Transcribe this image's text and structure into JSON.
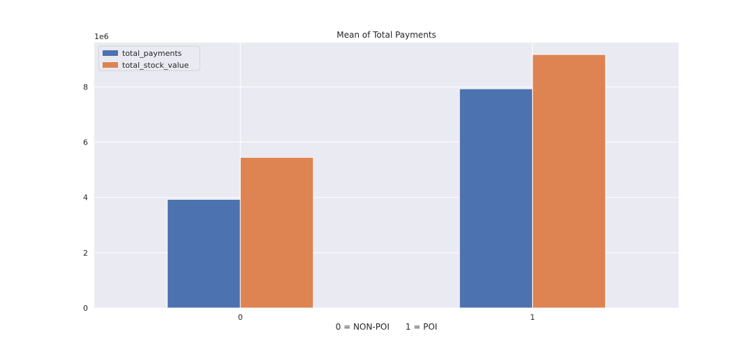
{
  "chart_data": {
    "type": "bar",
    "title": "Mean of Total Payments",
    "xlabel": "0 = NON-POI      1 = POI",
    "ylabel": "",
    "y_multiplier_label": "1e6",
    "categories": [
      "0",
      "1"
    ],
    "series": [
      {
        "name": "total_payments",
        "values": [
          3.93,
          7.93
        ],
        "color": "#4c72b0"
      },
      {
        "name": "total_stock_value",
        "values": [
          5.45,
          9.17
        ],
        "color": "#dd8452"
      }
    ],
    "ylim": [
      0,
      9.6
    ],
    "yticks": [
      0,
      2,
      4,
      6,
      8
    ],
    "grid": true,
    "legend_position": "top-left",
    "background_color": "#eaeaf2",
    "grid_color": "#ffffff"
  }
}
